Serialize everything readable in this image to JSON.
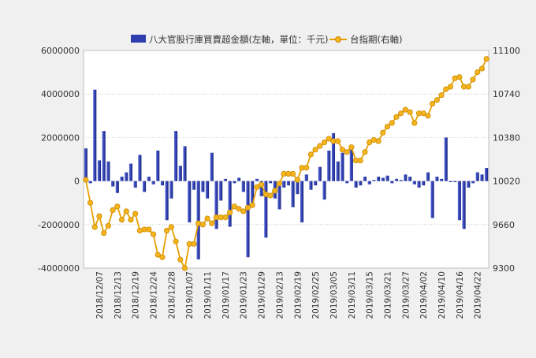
{
  "legend": {
    "bar_label": "八大官股行庫買賣超金額(左軸，單位：千元)",
    "line_label": "台指期(右軸)"
  },
  "chart_data": {
    "type": "bar+line",
    "y_left": {
      "min": -4000000,
      "max": 6000000,
      "ticks": [
        "6000000",
        "4000000",
        "2000000",
        "0",
        "-2000000",
        "-4000000"
      ]
    },
    "y_right": {
      "min": 9300,
      "max": 11100,
      "ticks": [
        "11100",
        "10740",
        "10380",
        "10020",
        "9660",
        "9300"
      ]
    },
    "x_ticks": [
      {
        "i": 3,
        "label": "2018/12/07"
      },
      {
        "i": 7,
        "label": "2018/12/13"
      },
      {
        "i": 11,
        "label": "2018/12/19"
      },
      {
        "i": 15,
        "label": "2018/12/24"
      },
      {
        "i": 19,
        "label": "2018/12/28"
      },
      {
        "i": 23,
        "label": "2019/01/07"
      },
      {
        "i": 27,
        "label": "2019/01/11"
      },
      {
        "i": 31,
        "label": "2019/01/17"
      },
      {
        "i": 35,
        "label": "2019/01/23"
      },
      {
        "i": 39,
        "label": "2019/01/29"
      },
      {
        "i": 43,
        "label": "2019/02/13"
      },
      {
        "i": 47,
        "label": "2019/02/19"
      },
      {
        "i": 51,
        "label": "2019/02/25"
      },
      {
        "i": 55,
        "label": "2019/03/05"
      },
      {
        "i": 59,
        "label": "2019/03/11"
      },
      {
        "i": 63,
        "label": "2019/03/15"
      },
      {
        "i": 67,
        "label": "2019/03/21"
      },
      {
        "i": 71,
        "label": "2019/03/27"
      },
      {
        "i": 75,
        "label": "2019/04/02"
      },
      {
        "i": 79,
        "label": "2019/04/10"
      },
      {
        "i": 83,
        "label": "2019/04/16"
      },
      {
        "i": 87,
        "label": "2019/04/22"
      }
    ],
    "series": [
      {
        "name": "八大官股行庫買賣超金額(左軸，單位：千元)",
        "type": "bar",
        "axis": "left",
        "color": "#2e3eae",
        "values": [
          1500000,
          -100000,
          4200000,
          950000,
          2300000,
          900000,
          -250000,
          -550000,
          200000,
          400000,
          800000,
          -300000,
          1200000,
          -500000,
          200000,
          -150000,
          1400000,
          -200000,
          -1800000,
          -800000,
          2300000,
          700000,
          1600000,
          -1900000,
          -400000,
          -3600000,
          -500000,
          -800000,
          1300000,
          -2200000,
          -900000,
          100000,
          -2100000,
          -100000,
          150000,
          -500000,
          -3500000,
          -1200000,
          100000,
          -700000,
          -2600000,
          -100000,
          -800000,
          -1300000,
          -300000,
          -200000,
          -1200000,
          -600000,
          -1900000,
          300000,
          -400000,
          -200000,
          650000,
          -850000,
          1400000,
          2200000,
          900000,
          1300000,
          -100000,
          1500000,
          -300000,
          -200000,
          200000,
          -150000,
          50000,
          200000,
          150000,
          250000,
          -100000,
          100000,
          50000,
          300000,
          200000,
          -150000,
          -300000,
          -200000,
          400000,
          -1700000,
          200000,
          100000,
          2000000,
          -50000,
          -50000,
          -1800000,
          -2200000,
          -300000,
          -100000,
          400000,
          300000,
          600000
        ]
      },
      {
        "name": "台指期(右軸)",
        "type": "line",
        "axis": "right",
        "color": "#e8a000",
        "values": [
          10030,
          9840,
          9640,
          9730,
          9590,
          9650,
          9780,
          9810,
          9700,
          9770,
          9700,
          9750,
          9610,
          9620,
          9620,
          9580,
          9410,
          9390,
          9610,
          9640,
          9520,
          9370,
          9300,
          9500,
          9500,
          9670,
          9660,
          9710,
          9670,
          9720,
          9720,
          9720,
          9760,
          9810,
          9790,
          9770,
          9800,
          9820,
          9970,
          9990,
          9910,
          9900,
          9940,
          10000,
          10080,
          10080,
          10080,
          10030,
          10130,
          10130,
          10240,
          10280,
          10310,
          10340,
          10370,
          10350,
          10350,
          10280,
          10260,
          10300,
          10190,
          10190,
          10260,
          10340,
          10360,
          10350,
          10420,
          10470,
          10500,
          10550,
          10580,
          10610,
          10590,
          10500,
          10580,
          10580,
          10560,
          10660,
          10690,
          10730,
          10780,
          10800,
          10870,
          10880,
          10800,
          10800,
          10860,
          10920,
          10950,
          11030
        ]
      }
    ]
  },
  "colors": {
    "bar": "#2e3eae",
    "line": "#e8a000",
    "marker_fill": "#f5b41e",
    "marker_edge": "#c98a00",
    "plot_bg": "#ffffff",
    "page_bg": "#f0f0f0"
  }
}
